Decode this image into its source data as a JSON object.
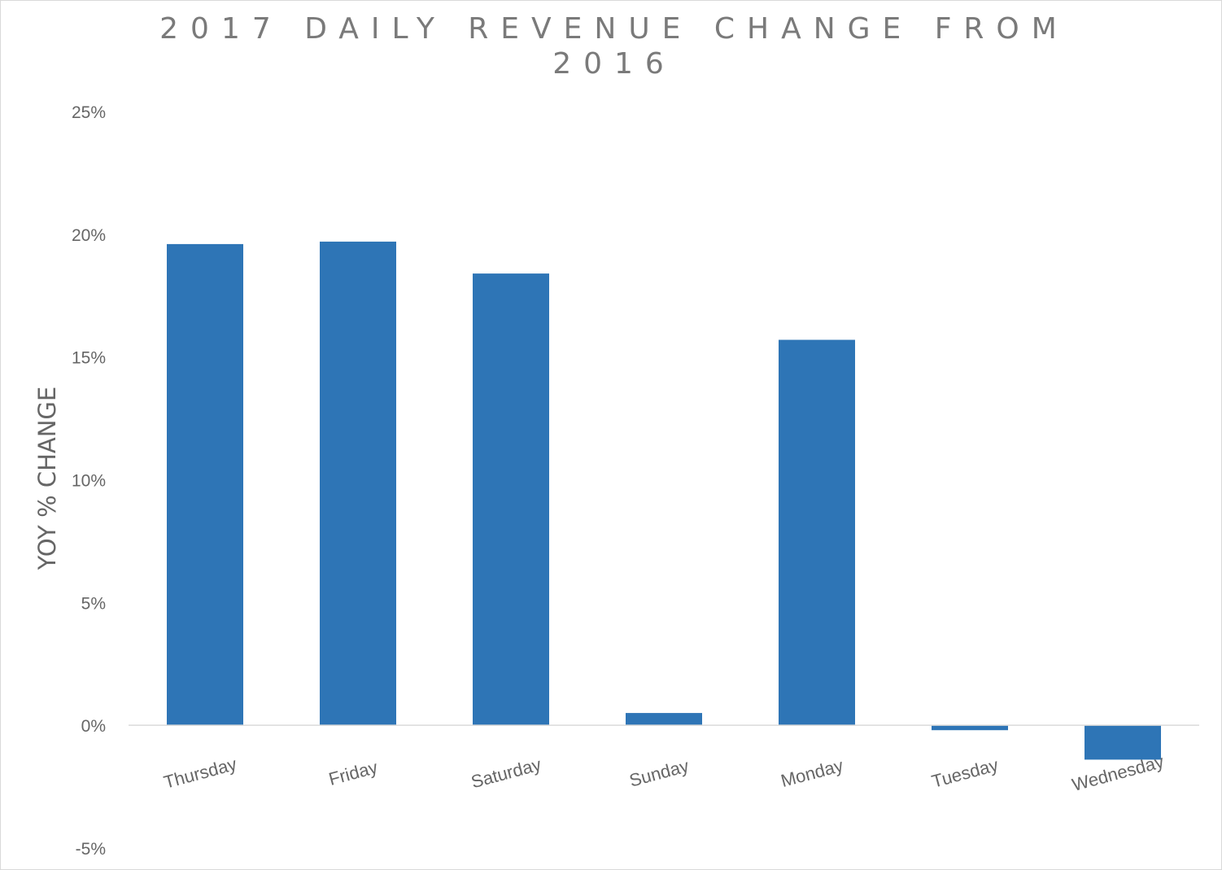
{
  "chart_data": {
    "type": "bar",
    "title": "2017 Daily Revenue Change from 2016",
    "xlabel": "",
    "ylabel": "YOY % CHANGE",
    "categories": [
      "Thursday",
      "Friday",
      "Saturday",
      "Sunday",
      "Monday",
      "Tuesday",
      "Wednesday"
    ],
    "series": [
      {
        "values": [
          19.6,
          19.7,
          18.4,
          0.5,
          15.7,
          -0.2,
          -1.4
        ]
      }
    ],
    "ylim": [
      -5,
      25
    ],
    "yticks": [
      25,
      20,
      15,
      10,
      5,
      0,
      -5
    ],
    "ytick_labels": [
      "25%",
      "20%",
      "15%",
      "10%",
      "5%",
      "0%",
      "-5%"
    ],
    "grid": false,
    "bar_color": "#2e75b6",
    "axis_color": "#d9d9d9",
    "text_color": "#666666"
  }
}
